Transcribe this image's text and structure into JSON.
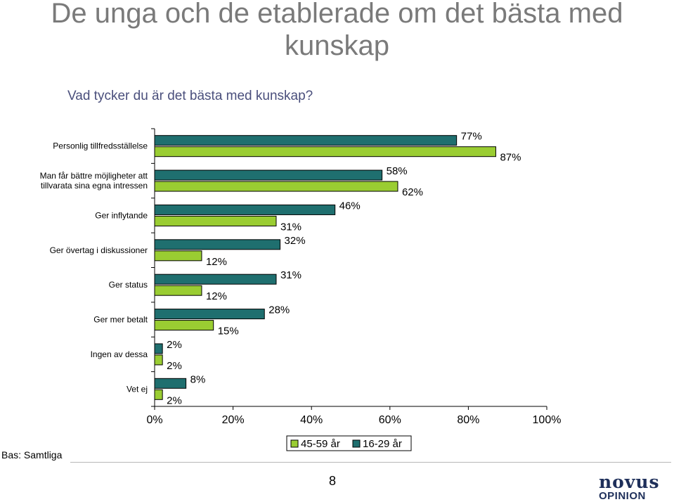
{
  "title": "De unga och de etablerade om det bästa med kunskap",
  "subtitle": "Vad tycker du är det bästa med kunskap?",
  "base_note": "Bas: Samtliga",
  "page_number": "8",
  "logo": {
    "top": "novus",
    "bottom": "OPINION"
  },
  "colors": {
    "series_a": "#9acd32",
    "series_b": "#1f6f6f",
    "border": "#000000"
  },
  "chart_data": {
    "type": "bar",
    "orientation": "horizontal",
    "categories": [
      "Personlig tillfredsställelse",
      "Man får bättre möjligheter att tillvarata sina egna intressen",
      "Ger inflytande",
      "Ger övertag i diskussioner",
      "Ger status",
      "Ger mer betalt",
      "Ingen av dessa",
      "Vet ej"
    ],
    "category_lines": [
      [
        "Personlig tillfredsställelse"
      ],
      [
        "Man får bättre möjligheter att",
        "tillvarata sina egna intressen"
      ],
      [
        "Ger inflytande"
      ],
      [
        "Ger övertag i diskussioner"
      ],
      [
        "Ger status"
      ],
      [
        "Ger mer betalt"
      ],
      [
        "Ingen av dessa"
      ],
      [
        "Vet ej"
      ]
    ],
    "series": [
      {
        "name": "16-29 år",
        "values": [
          77,
          58,
          46,
          32,
          31,
          28,
          2,
          8
        ]
      },
      {
        "name": "45-59 år",
        "values": [
          87,
          62,
          31,
          12,
          12,
          15,
          2,
          2
        ]
      }
    ],
    "value_suffix": "%",
    "xlim": [
      0,
      100
    ],
    "xticks": [
      "0%",
      "20%",
      "40%",
      "60%",
      "80%",
      "100%"
    ],
    "legend": {
      "placement": "bottom",
      "order": [
        "45-59 år",
        "16-29 år"
      ]
    },
    "grid": false
  }
}
